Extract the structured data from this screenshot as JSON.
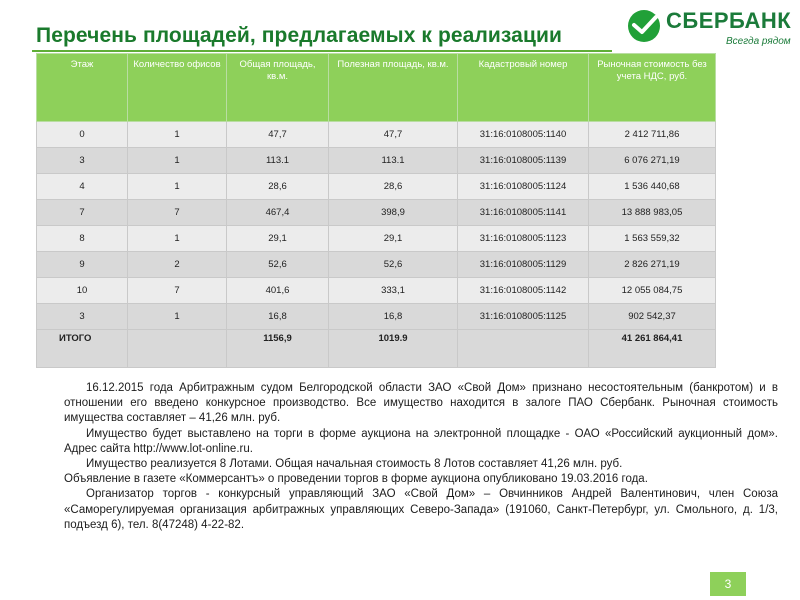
{
  "title": "Перечень площадей, предлагаемых к реализации",
  "logo": {
    "name": "СБЕРБАНК",
    "slogan": "Всегда рядом"
  },
  "table": {
    "headers": [
      "Этаж",
      "Количество офисов",
      "Общая площадь, кв.м.",
      "Полезная площадь, кв.м.",
      "Кадастровый номер",
      "Рыночная стоимость без учета НДС, руб."
    ],
    "rows": [
      [
        "0",
        "1",
        "47,7",
        "47,7",
        "31:16:0108005:1140",
        "2 412 711,86"
      ],
      [
        "3",
        "1",
        "113.1",
        "113.1",
        "31:16:0108005:1139",
        "6 076 271,19"
      ],
      [
        "4",
        "1",
        "28,6",
        "28,6",
        "31:16:0108005:1124",
        "1 536 440,68"
      ],
      [
        "7",
        "7",
        "467,4",
        "398,9",
        "31:16:0108005:1141",
        "13 888 983,05"
      ],
      [
        "8",
        "1",
        "29,1",
        "29,1",
        "31:16:0108005:1123",
        "1 563 559,32"
      ],
      [
        "9",
        "2",
        "52,6",
        "52,6",
        "31:16:0108005:1129",
        "2 826 271,19"
      ],
      [
        "10",
        "7",
        "401,6",
        "333,1",
        "31:16:0108005:1142",
        "12 055 084,75"
      ],
      [
        "3",
        "1",
        "16,8",
        "16,8",
        "31:16:0108005:1125",
        "902 542,37"
      ]
    ],
    "total": {
      "label": "ИТОГО",
      "total_area": "1156,9",
      "useful_area": "1019.9",
      "value": "41 261 864,41"
    }
  },
  "notes": {
    "p1": "16.12.2015 года Арбитражным судом Белгородской области ЗАО «Свой Дом» признано несостоятельным (банкротом) и в отношении его введено конкурсное производство. Все имущество находится в залоге ПАО Сбербанк. Рыночная стоимость имущества составляет – 41,26 млн. руб.",
    "p2": "Имущество будет выставлено на торги в форме аукциона на электронной площадке - ОАО «Российский аукционный дом». Адрес сайта http://www.lot-online.ru.",
    "p3": "Имущество реализуется 8 Лотами. Общая начальная стоимость 8 Лотов составляет 41,26 млн. руб.",
    "p4": "Объявление в газете «Коммерсантъ» о проведении торгов в форме аукциона опубликовано 19.03.2016 года.",
    "p5": "Организатор торгов - конкурсный управляющий ЗАО «Свой Дом» – Овчинников Андрей Валентинович, член Союза «Саморегулируемая организация арбитражных управляющих Северо-Запада» (191060, Санкт-Петербург, ул. Смольного, д. 1/3, подъезд 6), тел. 8(47248) 4-22-82."
  },
  "slide_number": "3",
  "colors": {
    "title_green": "#1a7a2c",
    "header_green": "#8ed05a",
    "logo_green": "#1b7b3a"
  }
}
